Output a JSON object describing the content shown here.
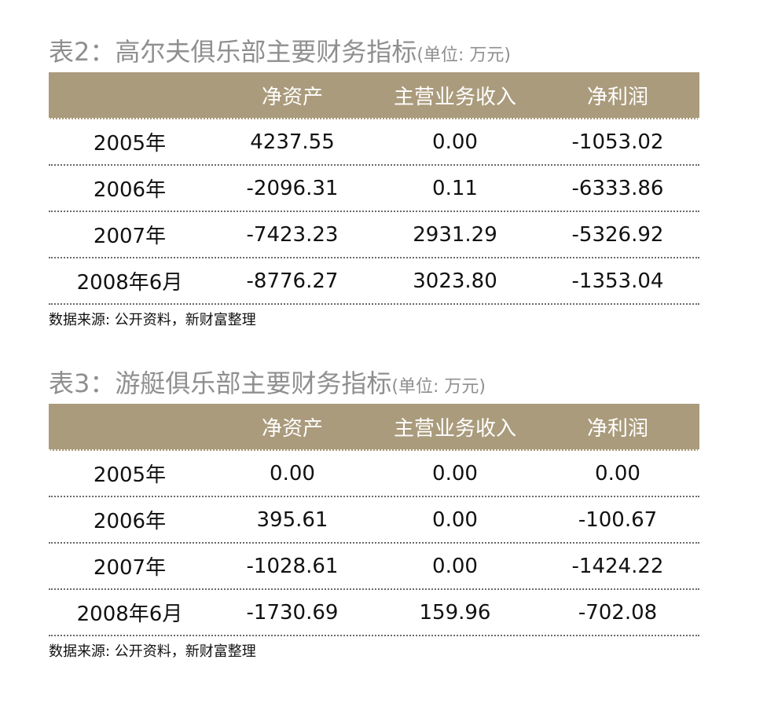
{
  "tables": [
    {
      "title": "表2：高尔夫俱乐部主要财务指标",
      "unit": "(单位: 万元)",
      "headers": [
        "",
        "净资产",
        "主营业务收入",
        "净利润"
      ],
      "rows": [
        [
          "2005年",
          "4237.55",
          "0.00",
          "-1053.02"
        ],
        [
          "2006年",
          "-2096.31",
          "0.11",
          "-6333.86"
        ],
        [
          "2007年",
          "-7423.23",
          "2931.29",
          "-5326.92"
        ],
        [
          "2008年6月",
          "-8776.27",
          "3023.80",
          "-1353.04"
        ]
      ],
      "source": "数据来源: 公开资料，新财富整理"
    },
    {
      "title": "表3：游艇俱乐部主要财务指标",
      "unit": "(单位: 万元)",
      "headers": [
        "",
        "净资产",
        "主营业务收入",
        "净利润"
      ],
      "rows": [
        [
          "2005年",
          "0.00",
          "0.00",
          "0.00"
        ],
        [
          "2006年",
          "395.61",
          "0.00",
          "-100.67"
        ],
        [
          "2007年",
          "-1028.61",
          "0.00",
          "-1424.22"
        ],
        [
          "2008年6月",
          "-1730.69",
          "159.96",
          "-702.08"
        ]
      ],
      "source": "数据来源: 公开资料，新财富整理"
    }
  ],
  "colors": {
    "header_bg": "#aa9b7c",
    "title_gray": "#8f8f8f"
  }
}
